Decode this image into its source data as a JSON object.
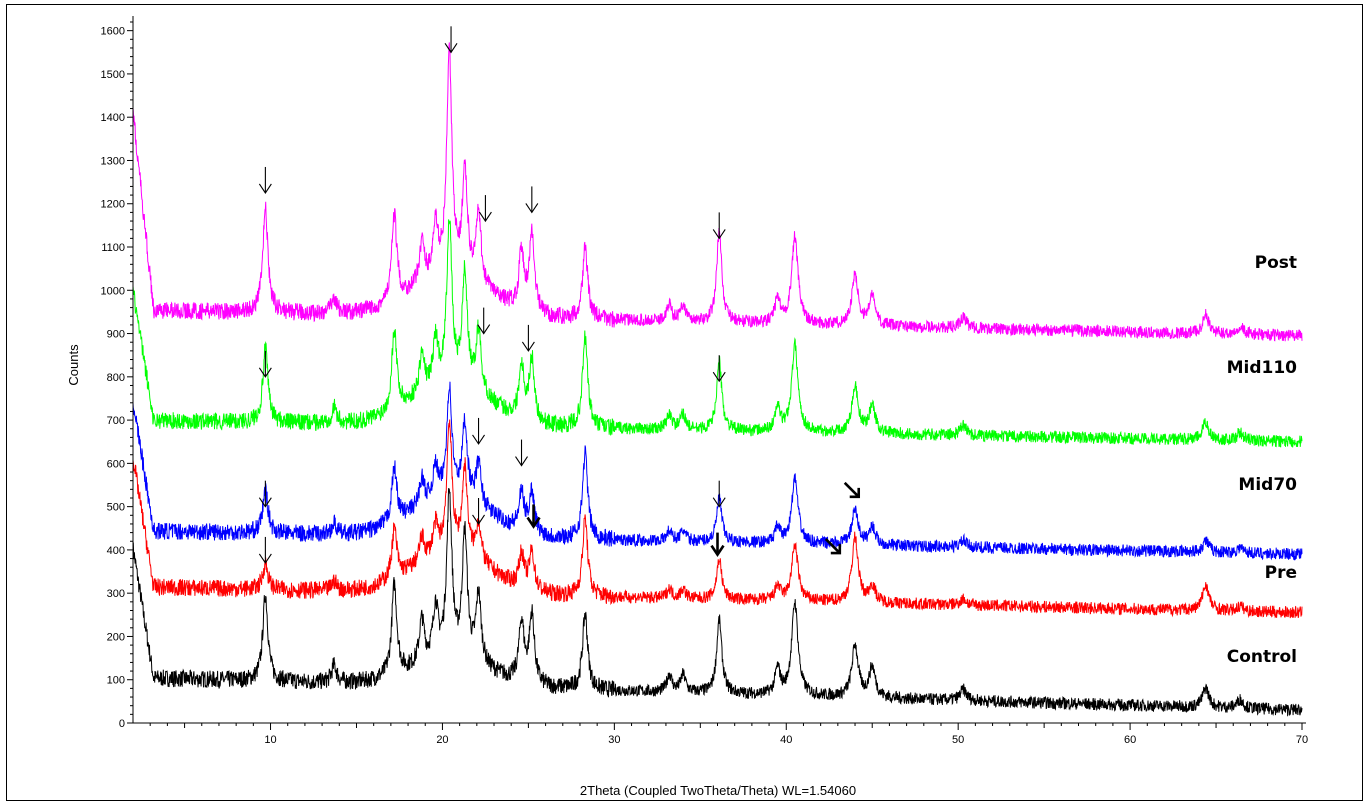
{
  "chart_data": {
    "type": "line",
    "title": "",
    "xlabel": "2Theta (Coupled TwoTheta/Theta) WL=1.54060",
    "ylabel": "Counts",
    "xlim": [
      2,
      70
    ],
    "ylim": [
      0,
      1620
    ],
    "x_ticks": [
      10,
      20,
      30,
      40,
      50,
      60,
      70
    ],
    "y_ticks": [
      0,
      100,
      200,
      300,
      400,
      500,
      600,
      700,
      800,
      900,
      1000,
      1100,
      1200,
      1300,
      1400,
      1500,
      1600
    ],
    "grid": false,
    "legend": "none; series labels printed at right end of each trace",
    "control_pattern": {
      "peaks": [
        {
          "x": 9.7,
          "height": 200
        },
        {
          "x": 13.7,
          "height": 40
        },
        {
          "x": 17.2,
          "height": 210
        },
        {
          "x": 18.8,
          "height": 100
        },
        {
          "x": 19.6,
          "height": 120
        },
        {
          "x": 20.4,
          "height": 380
        },
        {
          "x": 21.3,
          "height": 290
        },
        {
          "x": 22.1,
          "height": 160
        },
        {
          "x": 24.6,
          "height": 140
        },
        {
          "x": 25.2,
          "height": 160
        },
        {
          "x": 28.3,
          "height": 175
        },
        {
          "x": 33.2,
          "height": 40
        },
        {
          "x": 34.0,
          "height": 40
        },
        {
          "x": 36.1,
          "height": 170
        },
        {
          "x": 39.5,
          "height": 60
        },
        {
          "x": 40.5,
          "height": 215
        },
        {
          "x": 44.0,
          "height": 120
        },
        {
          "x": 45.0,
          "height": 70
        },
        {
          "x": 50.3,
          "height": 25
        },
        {
          "x": 64.4,
          "height": 45
        },
        {
          "x": 66.4,
          "height": 20
        }
      ]
    },
    "series": [
      {
        "name": "Control",
        "color": "#000000",
        "baseline_start": 105,
        "baseline_end": 30,
        "peak_scale": 1.0,
        "hump_height": 60,
        "peak_overrides": {}
      },
      {
        "name": "Pre",
        "color": "#ff0000",
        "baseline_start": 315,
        "baseline_end": 255,
        "peak_scale": 0.55,
        "hump_height": 90,
        "peak_overrides": {
          "9.7": 60,
          "20.4": 300,
          "21.3": 200,
          "28.3": 180,
          "40.5": 130,
          "44.0": 150,
          "64.4": 60
        }
      },
      {
        "name": "Mid70",
        "color": "#0000ff",
        "baseline_start": 445,
        "baseline_end": 390,
        "peak_scale": 0.6,
        "hump_height": 90,
        "peak_overrides": {
          "9.7": 100,
          "20.4": 250,
          "28.3": 200,
          "40.5": 150,
          "44.0": 80
        }
      },
      {
        "name": "Mid110",
        "color": "#00ff00",
        "baseline_start": 700,
        "baseline_end": 650,
        "peak_scale": 0.9,
        "hump_height": 90,
        "peak_overrides": {
          "9.7": 170,
          "20.4": 380,
          "28.3": 210,
          "36.1": 160,
          "40.5": 200
        }
      },
      {
        "name": "Post",
        "color": "#ff00ff",
        "baseline_start": 955,
        "baseline_end": 895,
        "peak_scale": 0.95,
        "hump_height": 90,
        "peak_overrides": {
          "9.7": 240,
          "20.4": 510,
          "21.3": 240,
          "22.1": 160,
          "25.2": 180,
          "36.1": 210,
          "40.5": 200
        }
      }
    ],
    "annotations": [
      {
        "type": "arrow",
        "x": 9.7,
        "y": 1285,
        "style": "thin"
      },
      {
        "type": "arrow",
        "x": 20.5,
        "y": 1610,
        "style": "thin"
      },
      {
        "type": "arrow",
        "x": 22.5,
        "y": 1220,
        "style": "thin"
      },
      {
        "type": "arrow",
        "x": 25.2,
        "y": 1240,
        "style": "thin"
      },
      {
        "type": "arrow",
        "x": 36.1,
        "y": 1180,
        "style": "thin"
      },
      {
        "type": "arrow",
        "x": 9.7,
        "y": 860,
        "style": "thin"
      },
      {
        "type": "arrow",
        "x": 22.4,
        "y": 960,
        "style": "thin"
      },
      {
        "type": "arrow",
        "x": 25.0,
        "y": 920,
        "style": "thin"
      },
      {
        "type": "arrow",
        "x": 36.1,
        "y": 850,
        "style": "thin"
      },
      {
        "type": "arrow",
        "x": 9.7,
        "y": 560,
        "style": "thin"
      },
      {
        "type": "arrow",
        "x": 22.1,
        "y": 705,
        "style": "thin"
      },
      {
        "type": "arrow",
        "x": 24.6,
        "y": 655,
        "style": "thin"
      },
      {
        "type": "arrow",
        "x": 36.1,
        "y": 560,
        "style": "thin"
      },
      {
        "type": "arrow",
        "x": 9.7,
        "y": 430,
        "style": "thin"
      },
      {
        "type": "arrow",
        "x": 22.1,
        "y": 520,
        "style": "thin"
      },
      {
        "type": "arrow",
        "x": 25.3,
        "y": 505,
        "style": "bold"
      },
      {
        "type": "arrow",
        "x": 36.0,
        "y": 440,
        "style": "bold"
      },
      {
        "type": "arrow-diag",
        "x": 43.4,
        "y": 555,
        "style": "bold"
      },
      {
        "type": "arrow-diag",
        "x": 42.3,
        "y": 425,
        "style": "bold"
      }
    ]
  }
}
